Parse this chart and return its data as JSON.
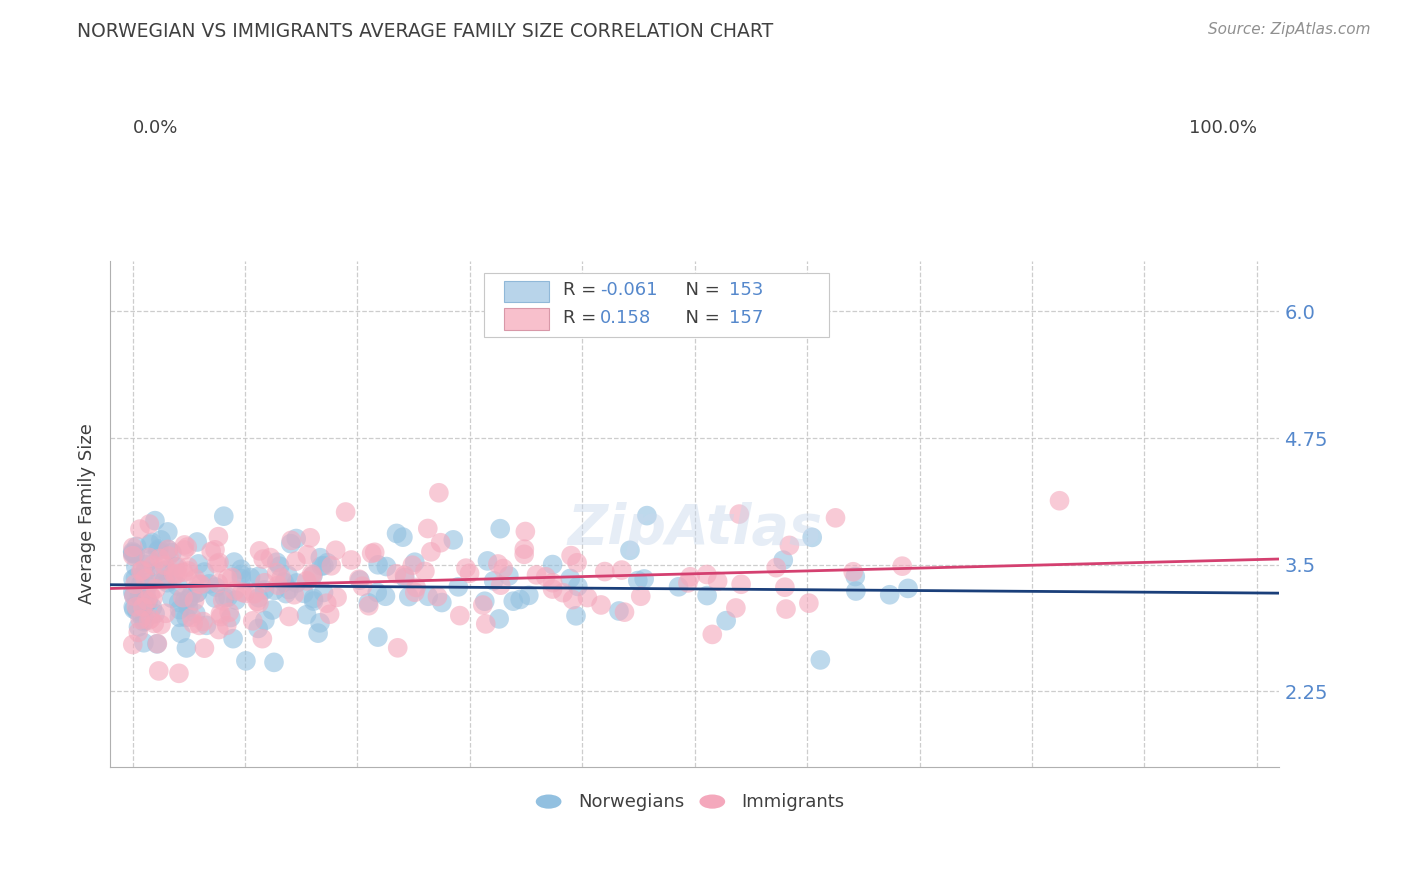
{
  "title": "NORWEGIAN VS IMMIGRANTS AVERAGE FAMILY SIZE CORRELATION CHART",
  "source": "Source: ZipAtlas.com",
  "ylabel": "Average Family Size",
  "yticks": [
    2.25,
    3.5,
    4.75,
    6.0
  ],
  "blue_color": "#92c0e0",
  "pink_color": "#f4a8bc",
  "blue_line_color": "#1a3f7a",
  "pink_line_color": "#d44070",
  "blue_legend_color": "#b8d4ea",
  "pink_legend_color": "#f8c0cc",
  "background_color": "#ffffff",
  "grid_color": "#c8c8c8",
  "title_color": "#404040",
  "source_color": "#909090",
  "tick_color": "#5588cc",
  "blue_R": -0.061,
  "blue_N": 153,
  "pink_R": 0.158,
  "pink_N": 157,
  "seed_blue": 42,
  "seed_pink": 137,
  "xmin": 0.0,
  "xmax": 1.0,
  "ymin": 1.5,
  "ymax": 6.5,
  "blue_intercept": 3.3,
  "blue_slope": -0.08,
  "pink_intercept": 3.27,
  "pink_slope": 0.28
}
